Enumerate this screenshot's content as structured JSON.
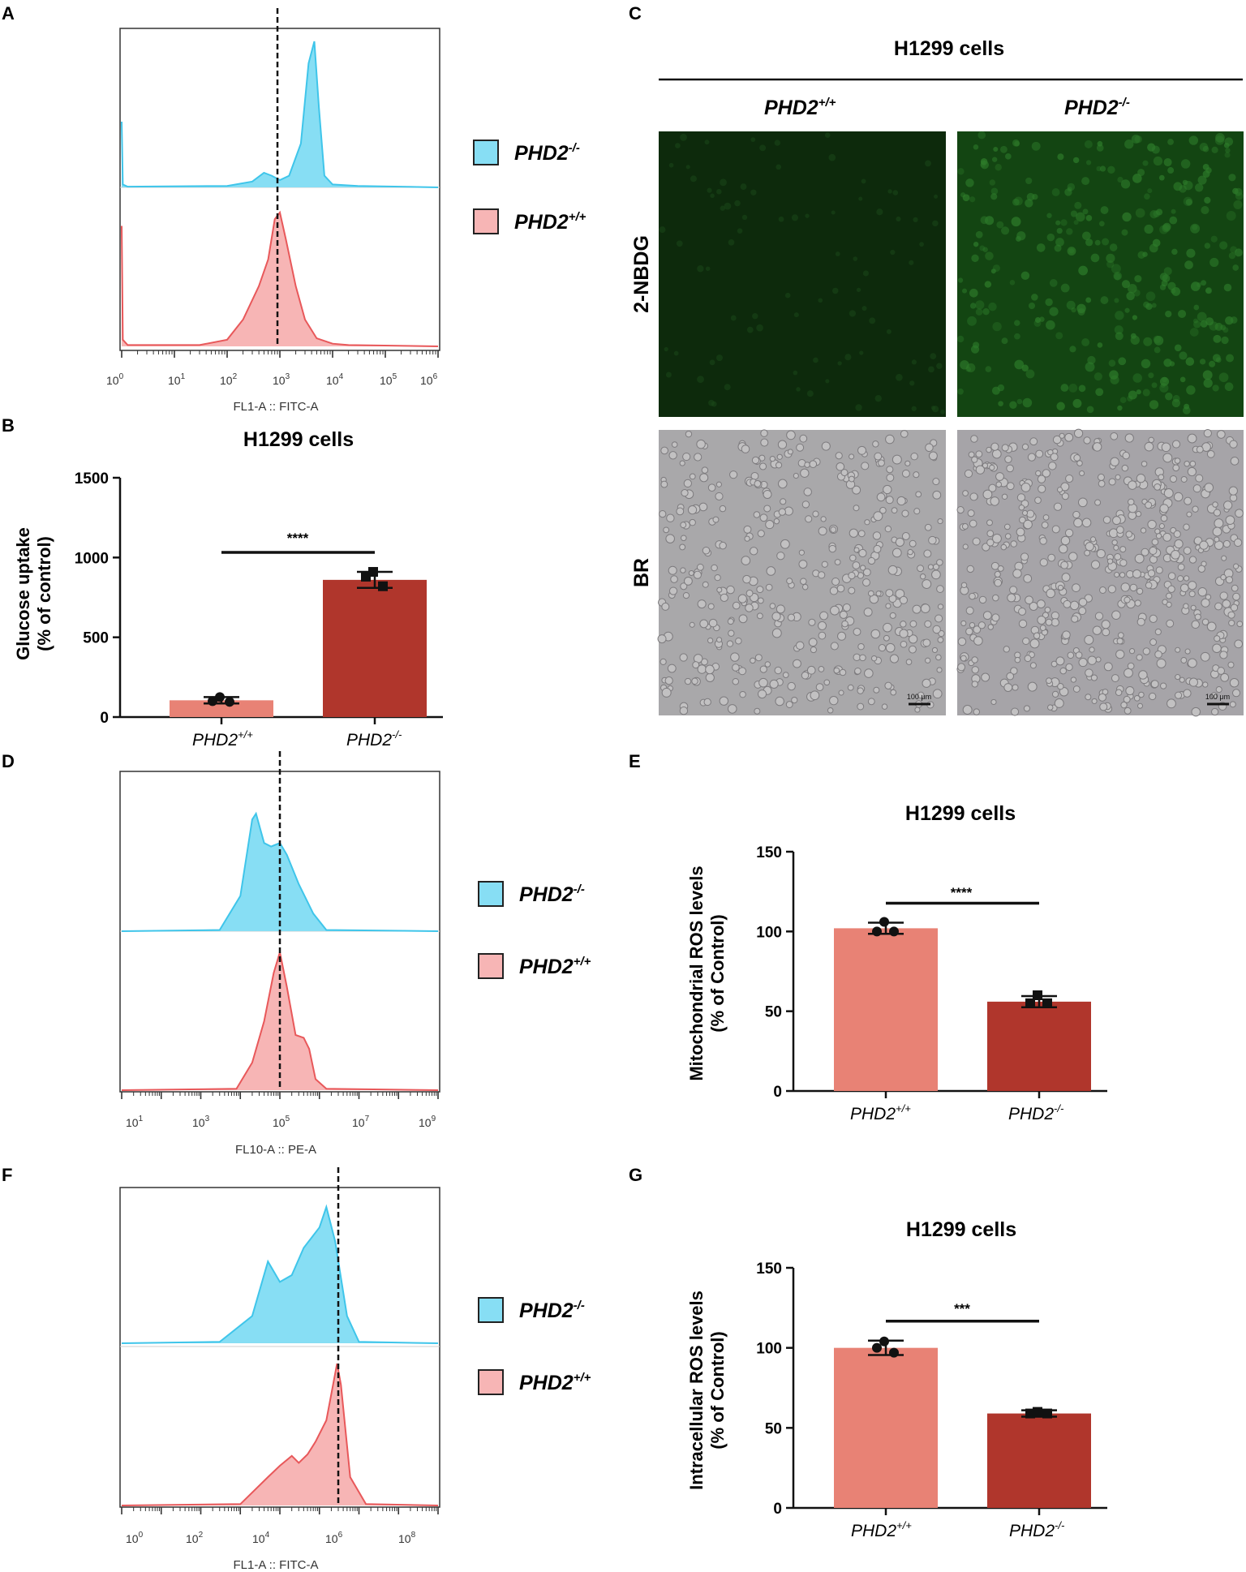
{
  "panels": {
    "A": {
      "letter": "A",
      "xlabel": "FL1-A :: FITC-A",
      "ticks": [
        {
          "base": "10",
          "exp": "0"
        },
        {
          "base": "10",
          "exp": "1"
        },
        {
          "base": "10",
          "exp": "2"
        },
        {
          "base": "10",
          "exp": "3"
        },
        {
          "base": "10",
          "exp": "4"
        },
        {
          "base": "10",
          "exp": "5"
        },
        {
          "base": "10",
          "exp": "6"
        }
      ],
      "legend": [
        {
          "base": "PHD2",
          "sup": "-/-",
          "color": "#87def4"
        },
        {
          "base": "PHD2",
          "sup": "+/+",
          "color": "#f7b5b5"
        }
      ]
    },
    "B": {
      "letter": "B",
      "title": "H1299 cells",
      "ylabel_line1": "Glucose uptake",
      "ylabel_line2": "(% of control)",
      "yticks": [
        "0",
        "500",
        "1000",
        "1500"
      ],
      "significance": "****",
      "categories": [
        {
          "base": "PHD2",
          "sup": "+/+"
        },
        {
          "base": "PHD2",
          "sup": "-/-"
        }
      ]
    },
    "C": {
      "letter": "C",
      "title": "H1299 cells",
      "columns": [
        {
          "base": "PHD2",
          "sup": "+/+"
        },
        {
          "base": "PHD2",
          "sup": "-/-"
        }
      ],
      "rows": [
        "2-NBDG",
        "BR"
      ],
      "scalebar": "100 μm"
    },
    "D": {
      "letter": "D",
      "xlabel": "FL10-A :: PE-A",
      "ticks": [
        {
          "base": "10",
          "exp": "1"
        },
        {
          "base": "10",
          "exp": "3"
        },
        {
          "base": "10",
          "exp": "5"
        },
        {
          "base": "10",
          "exp": "7"
        },
        {
          "base": "10",
          "exp": "9"
        }
      ],
      "legend": [
        {
          "base": "PHD2",
          "sup": "-/-",
          "color": "#87def4"
        },
        {
          "base": "PHD2",
          "sup": "+/+",
          "color": "#f7b5b5"
        }
      ]
    },
    "E": {
      "letter": "E",
      "title": "H1299 cells",
      "ylabel_line1": "Mitochondrial ROS levels",
      "ylabel_line2": "(% of Control)",
      "yticks": [
        "0",
        "50",
        "100",
        "150"
      ],
      "significance": "****",
      "categories": [
        {
          "base": "PHD2",
          "sup": "+/+"
        },
        {
          "base": "PHD2",
          "sup": "-/-"
        }
      ]
    },
    "F": {
      "letter": "F",
      "xlabel": "FL1-A :: FITC-A",
      "ticks": [
        {
          "base": "10",
          "exp": "0"
        },
        {
          "base": "10",
          "exp": "2"
        },
        {
          "base": "10",
          "exp": "4"
        },
        {
          "base": "10",
          "exp": "6"
        },
        {
          "base": "10",
          "exp": "8"
        }
      ],
      "legend": [
        {
          "base": "PHD2",
          "sup": "-/-",
          "color": "#87def4"
        },
        {
          "base": "PHD2",
          "sup": "+/+",
          "color": "#f7b5b5"
        }
      ]
    },
    "G": {
      "letter": "G",
      "title": "H1299 cells",
      "ylabel_line1": "Intracellular ROS levels",
      "ylabel_line2": "(% of Control)",
      "yticks": [
        "0",
        "50",
        "100",
        "150"
      ],
      "significance": "***",
      "categories": [
        {
          "base": "PHD2",
          "sup": "+/+"
        },
        {
          "base": "PHD2",
          "sup": "-/-"
        }
      ]
    }
  },
  "colors": {
    "cyan_fill": "#87def4",
    "cyan_line": "#3fc5ea",
    "pink_fill": "#f7b5b5",
    "pink_line": "#e8585a",
    "bar_light": "#e88275",
    "bar_dark": "#b0362c",
    "fluor_bg": "#0d2a0c",
    "br_bg": "#a9a8aa"
  },
  "chart_data": [
    {
      "panel": "A",
      "type": "area",
      "xscale": "log",
      "xlim": [
        1,
        1000000
      ],
      "threshold": 900,
      "series": [
        {
          "name": "PHD2-/-",
          "x": [
            1,
            1.05,
            1.3,
            100,
            300,
            500,
            700,
            1000,
            1500,
            2500,
            3500,
            4500,
            5500,
            7000,
            10000,
            30000,
            1000000
          ],
          "y": [
            0.45,
            0.02,
            0.005,
            0.01,
            0.04,
            0.1,
            0.08,
            0.05,
            0.08,
            0.3,
            0.85,
            1.0,
            0.55,
            0.08,
            0.02,
            0.01,
            0
          ]
        },
        {
          "name": "PHD2+/+",
          "x": [
            1,
            1.05,
            1.3,
            30,
            100,
            200,
            400,
            600,
            800,
            1000,
            1300,
            2000,
            3000,
            5000,
            10000,
            20000,
            1000000
          ],
          "y": [
            0.9,
            0.05,
            0.01,
            0.01,
            0.05,
            0.2,
            0.45,
            0.65,
            0.95,
            1.0,
            0.8,
            0.45,
            0.2,
            0.06,
            0.02,
            0.01,
            0
          ]
        }
      ]
    },
    {
      "panel": "B",
      "type": "bar",
      "categories": [
        "PHD2+/+",
        "PHD2-/-"
      ],
      "ylim": [
        0,
        1500
      ],
      "values": [
        105,
        860
      ],
      "errors": [
        20,
        50
      ],
      "points": [
        [
          125,
          100,
          95
        ],
        [
          910,
          880,
          820
        ]
      ]
    },
    {
      "panel": "D",
      "type": "area",
      "xscale": "log",
      "xlim": [
        10,
        1000000000
      ],
      "threshold": 100000,
      "series": [
        {
          "name": "PHD2-/-",
          "x": [
            10,
            3000,
            10000,
            20000,
            25000,
            40000,
            60000,
            100000,
            150000,
            300000,
            700000,
            1500000,
            1000000000
          ],
          "y": [
            0,
            0.01,
            0.3,
            0.95,
            1.0,
            0.75,
            0.72,
            0.75,
            0.65,
            0.4,
            0.15,
            0.01,
            0
          ]
        },
        {
          "name": "PHD2+/+",
          "x": [
            10,
            8000,
            20000,
            40000,
            70000,
            100000,
            150000,
            250000,
            400000,
            550000,
            800000,
            1500000,
            1000000000
          ],
          "y": [
            0,
            0.01,
            0.2,
            0.5,
            0.85,
            1.0,
            0.75,
            0.4,
            0.38,
            0.3,
            0.08,
            0.01,
            0
          ]
        }
      ]
    },
    {
      "panel": "E",
      "type": "bar",
      "categories": [
        "PHD2+/+",
        "PHD2-/-"
      ],
      "ylim": [
        0,
        150
      ],
      "values": [
        102,
        56
      ],
      "errors": [
        3.5,
        3.5
      ],
      "points": [
        [
          106,
          100,
          100
        ],
        [
          60,
          55,
          55
        ]
      ]
    },
    {
      "panel": "F",
      "type": "area",
      "xscale": "log",
      "xlim": [
        1,
        100000000
      ],
      "threshold": 300000,
      "series": [
        {
          "name": "PHD2-/-",
          "x": [
            1,
            300,
            2000,
            5000,
            10000,
            20000,
            40000,
            100000,
            150000,
            250000,
            500000,
            1000000,
            100000000
          ],
          "y": [
            0,
            0.01,
            0.2,
            0.6,
            0.45,
            0.5,
            0.7,
            0.85,
            1.0,
            0.75,
            0.2,
            0.01,
            0
          ]
        },
        {
          "name": "PHD2+/+",
          "x": [
            1,
            1000,
            5000,
            10000,
            20000,
            30000,
            50000,
            80000,
            150000,
            280000,
            350000,
            600000,
            1500000,
            100000000
          ],
          "y": [
            0,
            0.01,
            0.2,
            0.28,
            0.35,
            0.3,
            0.36,
            0.45,
            0.6,
            1.0,
            0.85,
            0.2,
            0.01,
            0
          ]
        }
      ]
    },
    {
      "panel": "G",
      "type": "bar",
      "categories": [
        "PHD2+/+",
        "PHD2-/-"
      ],
      "ylim": [
        0,
        150
      ],
      "values": [
        100,
        59
      ],
      "errors": [
        4.5,
        2
      ],
      "points": [
        [
          104,
          100,
          97
        ],
        [
          60,
          59,
          59
        ]
      ]
    }
  ]
}
